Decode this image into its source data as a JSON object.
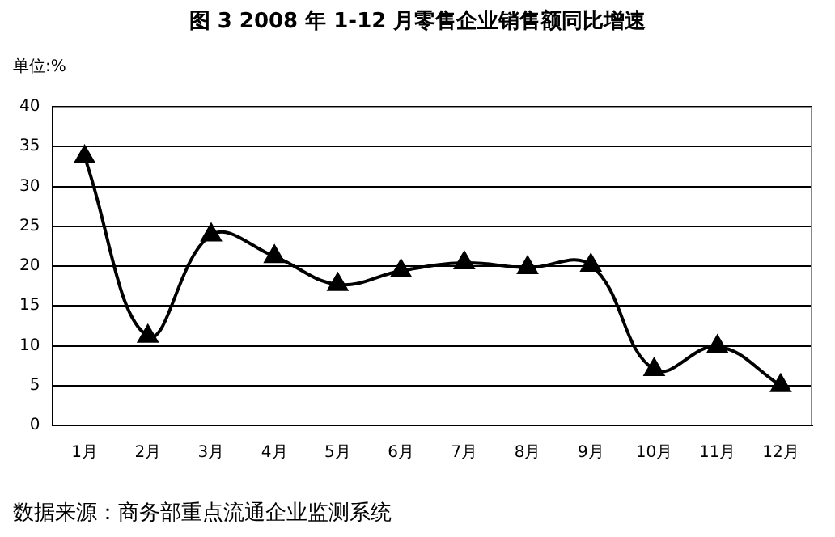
{
  "chart_data": {
    "type": "line",
    "title": "图 3 2008 年 1-12 月零售企业销售额同比增速",
    "ylabel": "单位:%",
    "categories": [
      "1月",
      "2月",
      "3月",
      "4月",
      "5月",
      "6月",
      "7月",
      "8月",
      "9月",
      "10月",
      "11月",
      "12月"
    ],
    "series": [
      {
        "color": "#000000",
        "values": [
          33.7,
          11.2,
          23.9,
          21.2,
          17.7,
          19.4,
          20.4,
          19.8,
          20.1,
          7,
          9.9,
          5
        ]
      }
    ],
    "ylim": [
      0,
      40
    ],
    "yticks": [
      0,
      5,
      10,
      15,
      20,
      25,
      30,
      35,
      40
    ],
    "grid": "y",
    "legend": false,
    "marker": "triangle",
    "line_style": "solid",
    "annotations": [
      "数据来源：商务部重点流通企业监测系统"
    ]
  }
}
